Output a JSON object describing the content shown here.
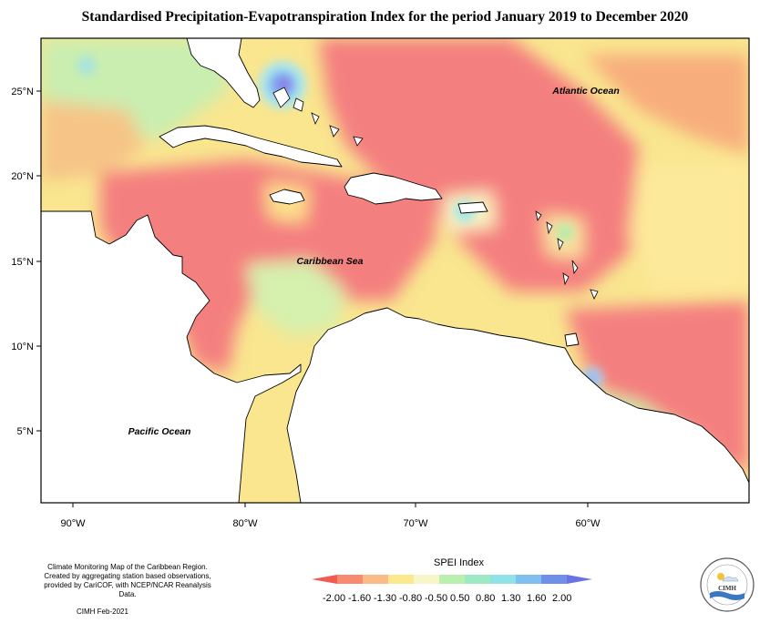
{
  "title": "Standardised Precipitation-Evapotranspiration Index for the period January 2019 to December 2020",
  "map": {
    "ocean_labels": [
      "Atlantic Ocean",
      "Caribbean Sea",
      "Pacific Ocean"
    ],
    "lat_ticks": [
      "5°N",
      "10°N",
      "15°N",
      "20°N",
      "25°N"
    ],
    "lon_ticks": [
      "90°W",
      "80°W",
      "70°W",
      "60°W"
    ],
    "colors": {
      "land": "#ffffff",
      "coast": "#000000",
      "extreme_dry": "#f47f7f",
      "severe_dry": "#f7a67a",
      "moderate_dry": "#fbc98a",
      "mild_dry": "#fde88e",
      "near_normal": "#f7f3b6",
      "mild_wet": "#c7f0a8",
      "moderate_wet": "#a7eebc",
      "very_wet": "#8ce3e0",
      "severe_wet": "#7fb6f2",
      "extreme_wet": "#8d7ee6"
    }
  },
  "footer": {
    "note_lines": [
      "Climate Monitoring Map of the Caribbean Region.",
      "Created by aggregating station based observations,",
      "provided by CariCOF, with NCEP/NCAR Reanalysis Data."
    ],
    "credit": "CIMH Feb-2021"
  },
  "legend": {
    "title": "SPEI Index",
    "labels": [
      "-2.00",
      "-1.60",
      "-1.30",
      "-0.80",
      "-0.50",
      "0.50",
      "0.80",
      "1.30",
      "1.60",
      "2.00"
    ],
    "colors": [
      "#f25b4f",
      "#f78a70",
      "#fbbb86",
      "#fde98d",
      "#f8f6c8",
      "#b9f0ad",
      "#9ce9c4",
      "#8fe2e8",
      "#80c0f0",
      "#6f8fe8",
      "#6a72e2"
    ]
  },
  "logo": {
    "text": "CIMH"
  }
}
